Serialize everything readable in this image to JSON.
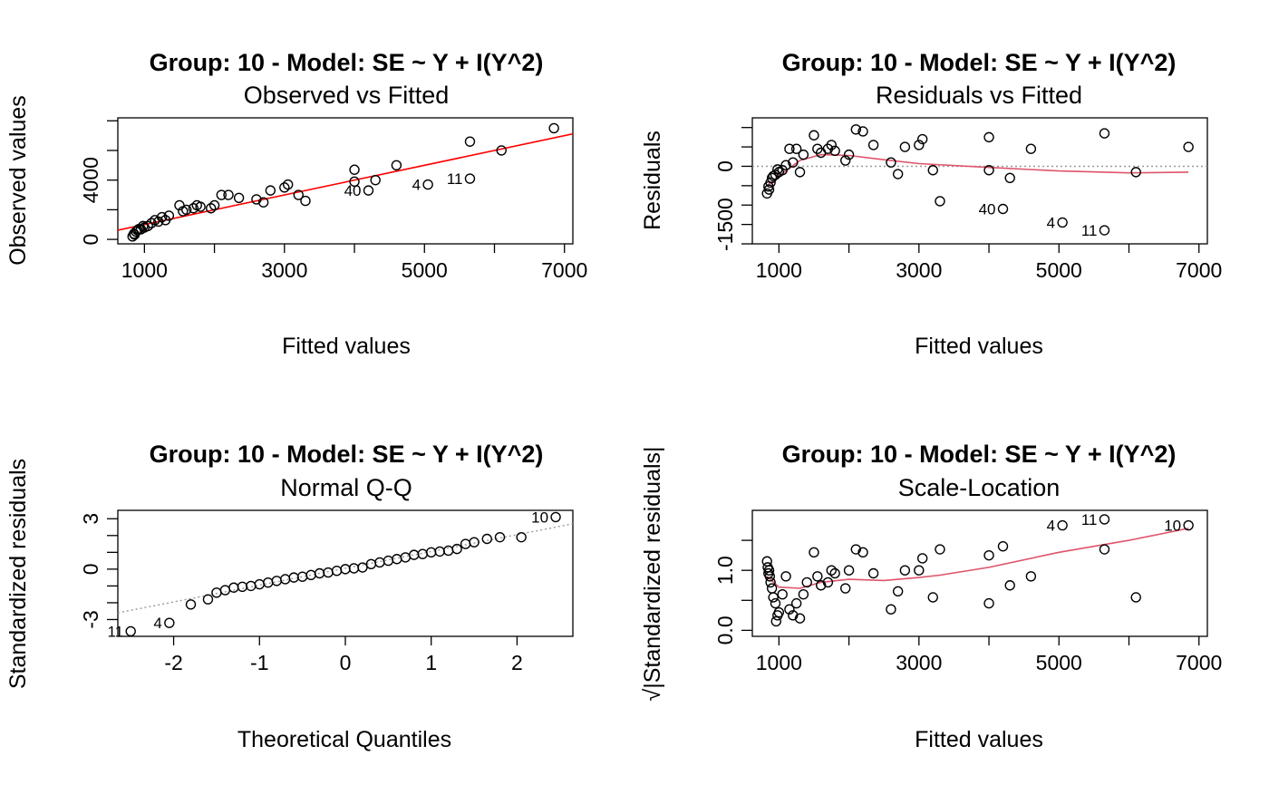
{
  "colors": {
    "points": "#000000",
    "fit_line": "#FF0000",
    "smooth_line": "#DF536B",
    "reference_line": "#999999"
  },
  "chart_data": [
    {
      "id": "observed-vs-fitted",
      "type": "scatter",
      "title": "Group: 10 - Model: SE ~ Y + I(Y^2)",
      "subtitle": "Observed vs Fitted",
      "xlabel": "Fitted values",
      "ylabel": "Observed values",
      "xlim": [
        620,
        7120
      ],
      "ylim": [
        -300,
        8200
      ],
      "xticks": [
        1000,
        2000,
        3000,
        4000,
        5000,
        6000,
        7000
      ],
      "xtick_labels": [
        "1000",
        "",
        "3000",
        "",
        "5000",
        "",
        "7000"
      ],
      "yticks": [
        0,
        2000,
        4000,
        6000,
        8000
      ],
      "ytick_labels": [
        "0",
        "",
        "4000",
        "",
        ""
      ],
      "points": [
        [
          830,
          200
        ],
        [
          850,
          380
        ],
        [
          860,
          320
        ],
        [
          880,
          520
        ],
        [
          900,
          620
        ],
        [
          920,
          700
        ],
        [
          950,
          680
        ],
        [
          980,
          900
        ],
        [
          1000,
          800
        ],
        [
          1050,
          900
        ],
        [
          1100,
          1100
        ],
        [
          1150,
          1300
        ],
        [
          1200,
          1200
        ],
        [
          1250,
          1500
        ],
        [
          1300,
          1300
        ],
        [
          1350,
          1600
        ],
        [
          1500,
          2300
        ],
        [
          1550,
          1900
        ],
        [
          1600,
          2000
        ],
        [
          1700,
          2100
        ],
        [
          1750,
          2300
        ],
        [
          1800,
          2200
        ],
        [
          1950,
          2100
        ],
        [
          2000,
          2300
        ],
        [
          2100,
          3000
        ],
        [
          2200,
          3000
        ],
        [
          2350,
          2800
        ],
        [
          2600,
          2700
        ],
        [
          2700,
          2500
        ],
        [
          2800,
          3300
        ],
        [
          3000,
          3500
        ],
        [
          3050,
          3700
        ],
        [
          3200,
          3000
        ],
        [
          3300,
          2600
        ],
        [
          4000,
          3900
        ],
        [
          4000,
          4700
        ],
        [
          4200,
          3300
        ],
        [
          4300,
          4000
        ],
        [
          4600,
          5000
        ],
        [
          5050,
          3700
        ],
        [
          5650,
          4100
        ],
        [
          5650,
          6600
        ],
        [
          6100,
          6000
        ],
        [
          6850,
          7500
        ]
      ],
      "point_labels": [
        {
          "label": "40",
          "x": 4200,
          "y": 3300
        },
        {
          "label": "4",
          "x": 5050,
          "y": 3700
        },
        {
          "label": "11",
          "x": 5650,
          "y": 4100
        }
      ],
      "fit_line": [
        [
          620,
          620
        ],
        [
          7120,
          7120
        ]
      ]
    },
    {
      "id": "residuals-vs-fitted",
      "type": "scatter",
      "title": "Group: 10 - Model: SE ~ Y + I(Y^2)",
      "subtitle": "Residuals vs Fitted",
      "xlabel": "Fitted values",
      "ylabel": "Residuals",
      "xlim": [
        620,
        7120
      ],
      "ylim": [
        -2000,
        1250
      ],
      "xticks": [
        1000,
        2000,
        3000,
        4000,
        5000,
        6000,
        7000
      ],
      "xtick_labels": [
        "1000",
        "",
        "3000",
        "",
        "5000",
        "",
        "7000"
      ],
      "yticks": [
        -2000,
        -1500,
        -1000,
        -500,
        0,
        500,
        1000
      ],
      "ytick_labels": [
        "",
        "-1500",
        "",
        "",
        "0",
        "",
        ""
      ],
      "points": [
        [
          830,
          -700
        ],
        [
          850,
          -520
        ],
        [
          860,
          -600
        ],
        [
          880,
          -420
        ],
        [
          900,
          -300
        ],
        [
          920,
          -250
        ],
        [
          950,
          -220
        ],
        [
          980,
          -80
        ],
        [
          1000,
          -150
        ],
        [
          1050,
          -100
        ],
        [
          1100,
          30
        ],
        [
          1150,
          450
        ],
        [
          1200,
          100
        ],
        [
          1250,
          450
        ],
        [
          1300,
          -150
        ],
        [
          1350,
          300
        ],
        [
          1500,
          800
        ],
        [
          1550,
          450
        ],
        [
          1600,
          350
        ],
        [
          1700,
          450
        ],
        [
          1750,
          550
        ],
        [
          1800,
          400
        ],
        [
          1950,
          150
        ],
        [
          2000,
          300
        ],
        [
          2100,
          950
        ],
        [
          2200,
          900
        ],
        [
          2350,
          550
        ],
        [
          2600,
          100
        ],
        [
          2700,
          -200
        ],
        [
          2800,
          500
        ],
        [
          3000,
          550
        ],
        [
          3050,
          700
        ],
        [
          3200,
          -100
        ],
        [
          3300,
          -900
        ],
        [
          4000,
          -100
        ],
        [
          4000,
          750
        ],
        [
          4200,
          -1100
        ],
        [
          4300,
          -300
        ],
        [
          4600,
          450
        ],
        [
          5050,
          -1450
        ],
        [
          5650,
          -1650
        ],
        [
          5650,
          850
        ],
        [
          6100,
          -150
        ],
        [
          6850,
          500
        ]
      ],
      "point_labels": [
        {
          "label": "40",
          "x": 4200,
          "y": -1100
        },
        {
          "label": "4",
          "x": 5050,
          "y": -1450
        },
        {
          "label": "11",
          "x": 5650,
          "y": -1650
        }
      ],
      "smooth_line": [
        [
          830,
          -500
        ],
        [
          1000,
          -250
        ],
        [
          1300,
          150
        ],
        [
          1600,
          300
        ],
        [
          2000,
          280
        ],
        [
          2500,
          170
        ],
        [
          3000,
          70
        ],
        [
          4000,
          -30
        ],
        [
          5000,
          -120
        ],
        [
          6000,
          -170
        ],
        [
          6850,
          -150
        ]
      ],
      "reference_line": [
        [
          620,
          0
        ],
        [
          7120,
          0
        ]
      ]
    },
    {
      "id": "normal-qq",
      "type": "scatter",
      "title": "Group: 10 - Model: SE ~ Y + I(Y^2)",
      "subtitle": "Normal Q-Q",
      "xlabel": "Theoretical Quantiles",
      "ylabel": "Standardized residuals",
      "xlim": [
        -2.65,
        2.65
      ],
      "ylim": [
        -4,
        3.5
      ],
      "xticks": [
        -2,
        -1,
        0,
        1,
        2
      ],
      "xtick_labels": [
        "-2",
        "-1",
        "0",
        "1",
        "2"
      ],
      "yticks": [
        -3,
        -2,
        -1,
        0,
        1,
        2,
        3
      ],
      "ytick_labels": [
        "-3",
        "",
        "",
        "0",
        "",
        "",
        "3"
      ],
      "points": [
        [
          -2.5,
          -3.7
        ],
        [
          -2.05,
          -3.2
        ],
        [
          -1.8,
          -2.1
        ],
        [
          -1.6,
          -1.8
        ],
        [
          -1.5,
          -1.4
        ],
        [
          -1.4,
          -1.25
        ],
        [
          -1.3,
          -1.1
        ],
        [
          -1.2,
          -1.05
        ],
        [
          -1.1,
          -1.0
        ],
        [
          -1.0,
          -0.9
        ],
        [
          -0.9,
          -0.8
        ],
        [
          -0.8,
          -0.7
        ],
        [
          -0.7,
          -0.6
        ],
        [
          -0.6,
          -0.5
        ],
        [
          -0.5,
          -0.45
        ],
        [
          -0.4,
          -0.35
        ],
        [
          -0.3,
          -0.25
        ],
        [
          -0.2,
          -0.2
        ],
        [
          -0.1,
          -0.1
        ],
        [
          0.0,
          0.0
        ],
        [
          0.1,
          0.05
        ],
        [
          0.2,
          0.1
        ],
        [
          0.3,
          0.3
        ],
        [
          0.4,
          0.4
        ],
        [
          0.5,
          0.5
        ],
        [
          0.6,
          0.6
        ],
        [
          0.7,
          0.7
        ],
        [
          0.8,
          0.85
        ],
        [
          0.9,
          0.9
        ],
        [
          1.0,
          1.0
        ],
        [
          1.1,
          1.05
        ],
        [
          1.2,
          1.1
        ],
        [
          1.3,
          1.2
        ],
        [
          1.4,
          1.5
        ],
        [
          1.5,
          1.6
        ],
        [
          1.65,
          1.8
        ],
        [
          1.8,
          1.9
        ],
        [
          2.05,
          1.9
        ],
        [
          2.45,
          3.1
        ]
      ],
      "point_labels": [
        {
          "label": "11",
          "x": -2.5,
          "y": -3.7
        },
        {
          "label": "4",
          "x": -2.05,
          "y": -3.2
        },
        {
          "label": "10",
          "x": 2.45,
          "y": 3.1
        }
      ],
      "reference_line": [
        [
          -2.65,
          -2.6
        ],
        [
          2.65,
          2.7
        ]
      ]
    },
    {
      "id": "scale-location",
      "type": "scatter",
      "title": "Group: 10 - Model: SE ~ Y + I(Y^2)",
      "subtitle": "Scale-Location",
      "xlabel": "Fitted values",
      "ylabel": "√|Standardized residuals|",
      "xlim": [
        620,
        7120
      ],
      "ylim": [
        -0.1,
        2.0
      ],
      "xticks": [
        1000,
        2000,
        3000,
        4000,
        5000,
        6000,
        7000
      ],
      "xtick_labels": [
        "1000",
        "",
        "3000",
        "",
        "5000",
        "",
        "7000"
      ],
      "yticks": [
        0.0,
        0.5,
        1.0,
        1.5
      ],
      "ytick_labels": [
        "0.0",
        "",
        "1.0",
        ""
      ],
      "points": [
        [
          830,
          1.15
        ],
        [
          840,
          1.05
        ],
        [
          850,
          0.95
        ],
        [
          860,
          1.0
        ],
        [
          870,
          0.9
        ],
        [
          880,
          0.8
        ],
        [
          900,
          0.7
        ],
        [
          920,
          0.55
        ],
        [
          950,
          0.45
        ],
        [
          960,
          0.15
        ],
        [
          980,
          0.25
        ],
        [
          1000,
          0.3
        ],
        [
          1050,
          0.6
        ],
        [
          1100,
          0.9
        ],
        [
          1150,
          0.35
        ],
        [
          1200,
          0.25
        ],
        [
          1250,
          0.45
        ],
        [
          1300,
          0.2
        ],
        [
          1350,
          0.6
        ],
        [
          1400,
          0.8
        ],
        [
          1500,
          1.3
        ],
        [
          1550,
          0.9
        ],
        [
          1600,
          0.75
        ],
        [
          1700,
          0.8
        ],
        [
          1750,
          1.0
        ],
        [
          1800,
          0.95
        ],
        [
          1950,
          0.7
        ],
        [
          2000,
          1.0
        ],
        [
          2100,
          1.35
        ],
        [
          2200,
          1.3
        ],
        [
          2350,
          0.95
        ],
        [
          2600,
          0.35
        ],
        [
          2700,
          0.65
        ],
        [
          2800,
          1.0
        ],
        [
          3000,
          1.0
        ],
        [
          3050,
          1.2
        ],
        [
          3200,
          0.55
        ],
        [
          3300,
          1.35
        ],
        [
          4000,
          0.45
        ],
        [
          4000,
          1.25
        ],
        [
          4200,
          1.4
        ],
        [
          4300,
          0.75
        ],
        [
          4600,
          0.9
        ],
        [
          5050,
          1.75
        ],
        [
          5650,
          1.85
        ],
        [
          5650,
          1.35
        ],
        [
          6100,
          0.55
        ],
        [
          6850,
          1.75
        ]
      ],
      "point_labels": [
        {
          "label": "4",
          "x": 5050,
          "y": 1.75
        },
        {
          "label": "11",
          "x": 5650,
          "y": 1.85
        },
        {
          "label": "10",
          "x": 6850,
          "y": 1.75
        }
      ],
      "smooth_line": [
        [
          830,
          0.9
        ],
        [
          1000,
          0.72
        ],
        [
          1300,
          0.7
        ],
        [
          1600,
          0.8
        ],
        [
          2000,
          0.85
        ],
        [
          2500,
          0.83
        ],
        [
          3000,
          0.88
        ],
        [
          3300,
          0.92
        ],
        [
          4000,
          1.05
        ],
        [
          5000,
          1.3
        ],
        [
          6000,
          1.5
        ],
        [
          6850,
          1.7
        ]
      ]
    }
  ]
}
